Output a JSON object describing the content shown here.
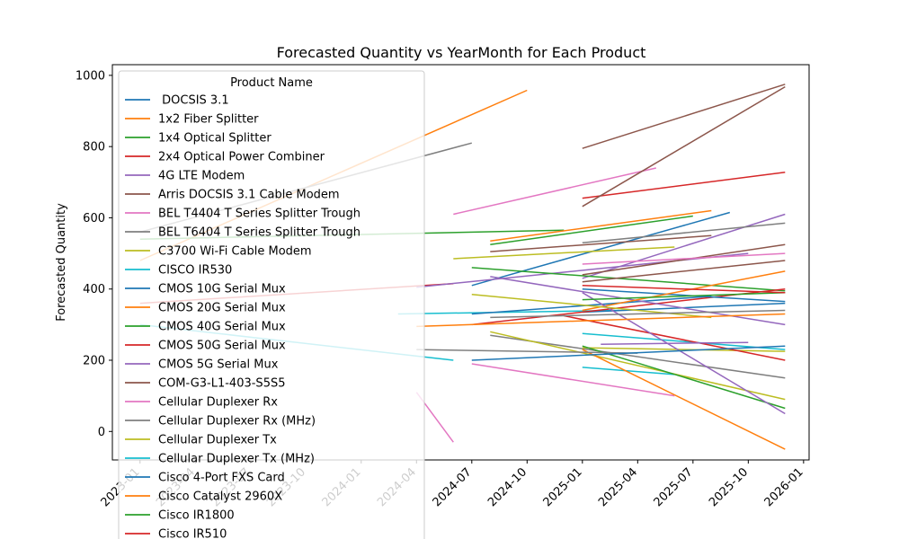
{
  "chart_data": {
    "type": "line",
    "title": "Forecasted Quantity vs YearMonth for Each Product",
    "xlabel": "",
    "ylabel": "Forecasted Quantity",
    "xlim": [
      "2023-01",
      "2026-01"
    ],
    "ylim": [
      -80,
      1030
    ],
    "x_ticks": [
      "2023-01",
      "2023-04",
      "2023-07",
      "2023-10",
      "2024-01",
      "2024-04",
      "2024-07",
      "2024-10",
      "2025-01",
      "2025-04",
      "2025-07",
      "2025-10",
      "2026-01"
    ],
    "y_ticks": [
      0,
      200,
      400,
      600,
      800,
      1000
    ],
    "legend": {
      "title": "Product Name",
      "placement": "upper-left"
    },
    "series": [
      {
        "name": " DOCSIS 3.1",
        "color": "#1f77b4",
        "x": [
          "2024-07",
          "2025-09"
        ],
        "y": [
          410,
          615
        ]
      },
      {
        "name": "1x2 Fiber Splitter",
        "color": "#ff7f0e",
        "x": [
          "2023-01",
          "2024-10"
        ],
        "y": [
          480,
          958
        ]
      },
      {
        "name": "1x4 Optical Splitter",
        "color": "#2ca02c",
        "x": [
          "2023-01",
          "2024-12"
        ],
        "y": [
          540,
          565
        ]
      },
      {
        "name": "2x4 Optical Power Combiner",
        "color": "#d62728",
        "x": [
          "2023-01",
          "2024-06"
        ],
        "y": [
          360,
          415
        ]
      },
      {
        "name": "4G LTE Modem",
        "color": "#9467bd",
        "x": [
          "2024-04",
          "2025-10"
        ],
        "y": [
          405,
          500
        ]
      },
      {
        "name": "Arris DOCSIS 3.1 Cable Modem",
        "color": "#8c564b",
        "x": [
          "2025-01",
          "2025-12"
        ],
        "y": [
          795,
          975
        ]
      },
      {
        "name": "BEL T4404 T Series Splitter Trough",
        "color": "#e377c2",
        "x": [
          "2024-06",
          "2025-05"
        ],
        "y": [
          610,
          740
        ]
      },
      {
        "name": "BEL T6404 T Series Splitter Trough",
        "color": "#7f7f7f",
        "x": [
          "2023-01",
          "2024-07"
        ],
        "y": [
          560,
          810
        ]
      },
      {
        "name": "C3700 Wi-Fi Cable Modem",
        "color": "#bcbd22",
        "x": [
          "2024-06",
          "2025-06"
        ],
        "y": [
          485,
          518
        ]
      },
      {
        "name": "CISCO IR530",
        "color": "#17becf",
        "x": [
          "2024-03",
          "2025-03"
        ],
        "y": [
          330,
          340
        ]
      },
      {
        "name": "CMOS 10G Serial Mux",
        "color": "#1f77b4",
        "x": [
          "2025-01",
          "2025-12"
        ],
        "y": [
          335,
          360
        ]
      },
      {
        "name": "CMOS 20G Serial Mux",
        "color": "#ff7f0e",
        "x": [
          "2024-08",
          "2025-08"
        ],
        "y": [
          535,
          620
        ]
      },
      {
        "name": "CMOS 40G Serial Mux",
        "color": "#2ca02c",
        "x": [
          "2024-08",
          "2025-07"
        ],
        "y": [
          525,
          605
        ]
      },
      {
        "name": "CMOS 50G Serial Mux",
        "color": "#d62728",
        "x": [
          "2025-01",
          "2025-12"
        ],
        "y": [
          655,
          728
        ]
      },
      {
        "name": "CMOS 5G Serial Mux",
        "color": "#9467bd",
        "x": [
          "2025-01",
          "2025-12"
        ],
        "y": [
          430,
          610
        ]
      },
      {
        "name": "COM-G3-L1-403-S5S5",
        "color": "#8c564b",
        "x": [
          "2025-01",
          "2025-12"
        ],
        "y": [
          632,
          968
        ]
      },
      {
        "name": "Cellular Duplexer Rx",
        "color": "#e377c2",
        "x": [
          "2024-07",
          "2025-06"
        ],
        "y": [
          190,
          100
        ]
      },
      {
        "name": "Cellular Duplexer Rx (MHz)",
        "color": "#7f7f7f",
        "x": [
          "2024-08",
          "2025-12"
        ],
        "y": [
          270,
          150
        ]
      },
      {
        "name": "Cellular Duplexer Tx",
        "color": "#bcbd22",
        "x": [
          "2024-08",
          "2025-12"
        ],
        "y": [
          280,
          90
        ]
      },
      {
        "name": "Cellular Duplexer Tx (MHz)",
        "color": "#17becf",
        "x": [
          "2025-01",
          "2025-06"
        ],
        "y": [
          180,
          160
        ]
      },
      {
        "name": "Cisco 4-Port FXS Card",
        "color": "#1f77b4",
        "x": [
          "2024-07",
          "2025-08"
        ],
        "y": [
          330,
          380
        ]
      },
      {
        "name": "Cisco Catalyst 2960X",
        "color": "#ff7f0e",
        "x": [
          "2025-01",
          "2025-12"
        ],
        "y": [
          230,
          -50
        ]
      },
      {
        "name": "Cisco IR1800",
        "color": "#2ca02c",
        "x": [
          "2024-07",
          "2025-12"
        ],
        "y": [
          460,
          395
        ]
      },
      {
        "name": "Cisco IR510",
        "color": "#d62728",
        "x": [
          "2024-07",
          "2025-12"
        ],
        "y": [
          300,
          400
        ]
      },
      {
        "name": "",
        "color": "#9467bd",
        "x": [
          "2024-08",
          "2025-12"
        ],
        "y": [
          435,
          300
        ]
      },
      {
        "name": "",
        "color": "#8c564b",
        "x": [
          "2024-08",
          "2025-08"
        ],
        "y": [
          505,
          550
        ]
      },
      {
        "name": "",
        "color": "#7f7f7f",
        "x": [
          "2025-01",
          "2025-12"
        ],
        "y": [
          530,
          585
        ]
      },
      {
        "name": "",
        "color": "#bcbd22",
        "x": [
          "2025-01",
          "2025-12"
        ],
        "y": [
          235,
          225
        ]
      },
      {
        "name": "",
        "color": "#17becf",
        "x": [
          "2025-01",
          "2025-12"
        ],
        "y": [
          275,
          230
        ]
      },
      {
        "name": "",
        "color": "#1f77b4",
        "x": [
          "2025-01",
          "2025-12"
        ],
        "y": [
          400,
          365
        ]
      },
      {
        "name": "",
        "color": "#ff7f0e",
        "x": [
          "2025-01",
          "2025-12"
        ],
        "y": [
          340,
          450
        ]
      },
      {
        "name": "",
        "color": "#2ca02c",
        "x": [
          "2025-01",
          "2025-12"
        ],
        "y": [
          240,
          65
        ]
      },
      {
        "name": "",
        "color": "#d62728",
        "x": [
          "2024-12",
          "2025-12"
        ],
        "y": [
          325,
          200
        ]
      },
      {
        "name": "",
        "color": "#9467bd",
        "x": [
          "2025-01",
          "2025-12"
        ],
        "y": [
          390,
          50
        ]
      },
      {
        "name": "",
        "color": "#8c564b",
        "x": [
          "2025-01",
          "2025-12"
        ],
        "y": [
          440,
          525
        ]
      },
      {
        "name": "",
        "color": "#e377c2",
        "x": [
          "2024-04",
          "2024-06"
        ],
        "y": [
          110,
          -30
        ]
      },
      {
        "name": "",
        "color": "#7f7f7f",
        "x": [
          "2024-04",
          "2025-04"
        ],
        "y": [
          230,
          220
        ]
      },
      {
        "name": "",
        "color": "#bcbd22",
        "x": [
          "2024-07",
          "2025-08"
        ],
        "y": [
          385,
          320
        ]
      },
      {
        "name": "",
        "color": "#17becf",
        "x": [
          "2023-01",
          "2024-06"
        ],
        "y": [
          300,
          200
        ]
      },
      {
        "name": "",
        "color": "#1f77b4",
        "x": [
          "2024-07",
          "2025-12"
        ],
        "y": [
          200,
          240
        ]
      },
      {
        "name": "",
        "color": "#ff7f0e",
        "x": [
          "2024-04",
          "2025-12"
        ],
        "y": [
          295,
          330
        ]
      },
      {
        "name": "",
        "color": "#2ca02c",
        "x": [
          "2025-01",
          "2025-12"
        ],
        "y": [
          370,
          390
        ]
      },
      {
        "name": "",
        "color": "#d62728",
        "x": [
          "2025-01",
          "2025-12"
        ],
        "y": [
          410,
          390
        ]
      },
      {
        "name": "",
        "color": "#9467bd",
        "x": [
          "2025-02",
          "2025-10"
        ],
        "y": [
          245,
          250
        ]
      },
      {
        "name": "",
        "color": "#8c564b",
        "x": [
          "2025-01",
          "2025-12"
        ],
        "y": [
          420,
          480
        ]
      },
      {
        "name": "",
        "color": "#e377c2",
        "x": [
          "2025-01",
          "2025-12"
        ],
        "y": [
          470,
          500
        ]
      },
      {
        "name": "",
        "color": "#7f7f7f",
        "x": [
          "2024-08",
          "2025-12"
        ],
        "y": [
          320,
          340
        ]
      }
    ]
  }
}
